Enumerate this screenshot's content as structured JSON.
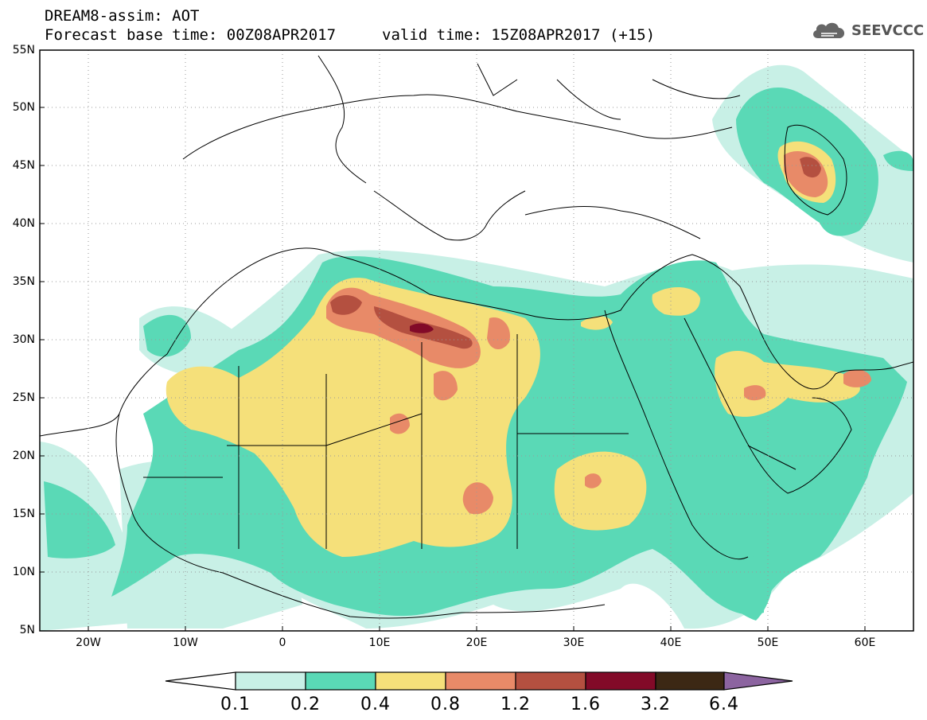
{
  "header": {
    "title": "DREAM8-assim: AOT",
    "base_time": "Forecast base time: 00Z08APR2017",
    "valid_time": "valid time: 15Z08APR2017 (+15)",
    "logo_text": "SEEVCCC"
  },
  "map": {
    "lat_labels": [
      "55N",
      "50N",
      "45N",
      "40N",
      "35N",
      "30N",
      "25N",
      "20N",
      "15N",
      "10N",
      "5N"
    ],
    "lon_labels": [
      "20W",
      "10W",
      "0",
      "10E",
      "20E",
      "30E",
      "40E",
      "50E",
      "60E"
    ],
    "lon_range": [
      -25,
      65
    ],
    "lat_range": [
      5,
      55
    ]
  },
  "colorbar": {
    "labels": [
      "0.1",
      "0.2",
      "0.4",
      "0.8",
      "1.2",
      "1.6",
      "3.2",
      "6.4"
    ],
    "colors": [
      "#ffffff",
      "#c8f0e6",
      "#5ad9b6",
      "#f5e07a",
      "#e88a68",
      "#b45040",
      "#820a28",
      "#3c2814",
      "#8c64a0"
    ]
  }
}
